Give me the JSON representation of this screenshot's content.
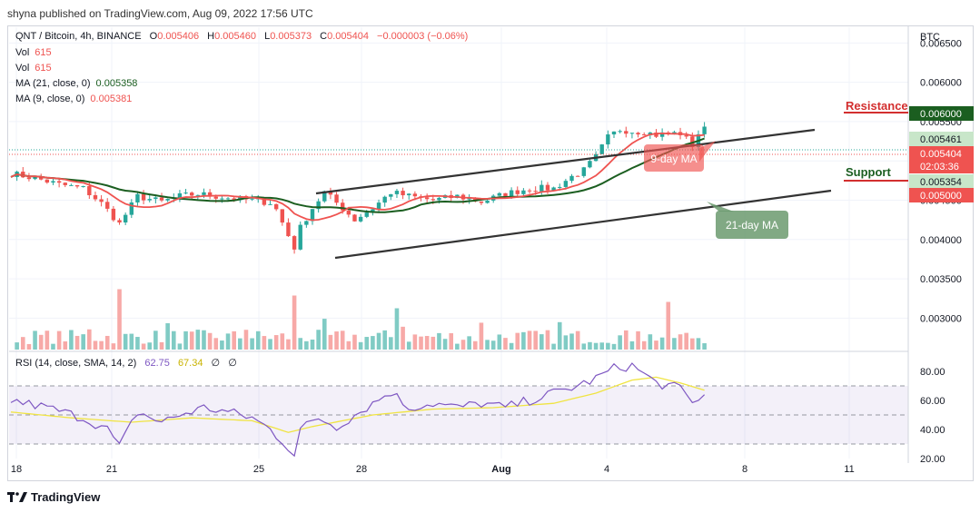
{
  "header": {
    "publisher": "shyna published on TradingView.com, Aug 09, 2022 17:56 UTC",
    "currency": "BTC"
  },
  "legend": {
    "symbol": "QNT / Bitcoin, 4h, BINANCE",
    "o_label": "O",
    "o": "0.005406",
    "h_label": "H",
    "h": "0.005460",
    "l_label": "L",
    "l": "0.005373",
    "c_label": "C",
    "c": "0.005404",
    "change": "−0.000003 (−0.06%)",
    "vol1_label": "Vol",
    "vol1": "615",
    "vol2_label": "Vol",
    "vol2": "615",
    "ma21_label": "MA (21, close, 0)",
    "ma21": "0.005358",
    "ma9_label": "MA (9, close, 0)",
    "ma9": "0.005381",
    "rsi_label": "RSI (14, close, SMA, 14, 2)",
    "rsi": "62.75",
    "rsi_sma": "67.34",
    "rsi_extra1": "∅",
    "rsi_extra2": "∅"
  },
  "annotations": {
    "resistance": "Resistance",
    "support": "Support",
    "ma9_tag": "9-day MA",
    "ma21_tag": "21-day MA"
  },
  "price_badges": {
    "resistance": "0.006000",
    "high": "0.005461",
    "last": "0.005404",
    "countdown": "02:03:36",
    "ma21": "0.005354",
    "support": "0.005000"
  },
  "colors": {
    "up": "#26a69a",
    "down": "#ef5350",
    "ma9": "#ef5350",
    "ma21": "#1b5e20",
    "rsi": "#7e57c2",
    "rsi_sma": "#f0e442",
    "channel": "#333333",
    "support": "#d32f2f",
    "resistance_badge": "#1b5e20"
  },
  "footer": {
    "brand": "TradingView"
  },
  "chart_data": [
    {
      "type": "candlestick",
      "title": "QNT / Bitcoin, 4h, BINANCE",
      "y_axis_ticks": [
        "0.006500",
        "0.006000",
        "0.005500",
        "0.005000",
        "0.004500",
        "0.004000",
        "0.003500",
        "0.003000"
      ],
      "y_axis_values": [
        0.0065,
        0.006,
        0.0055,
        0.005,
        0.0045,
        0.004,
        0.0035,
        0.003
      ],
      "x_axis_ticks": [
        "18",
        "21",
        "25",
        "28",
        "Aug",
        "4",
        "8",
        "11"
      ],
      "ylim": [
        0.0026,
        0.0067
      ],
      "close_path": [
        [
          0,
          0.00484
        ],
        [
          4,
          0.00478
        ],
        [
          8,
          0.0047
        ],
        [
          12,
          0.00465
        ],
        [
          15,
          0.00446
        ],
        [
          18,
          0.0042
        ],
        [
          21,
          0.00455
        ],
        [
          25,
          0.00448
        ],
        [
          28,
          0.00455
        ],
        [
          31,
          0.00458
        ],
        [
          34,
          0.00455
        ],
        [
          37,
          0.00452
        ],
        [
          40,
          0.0045
        ],
        [
          43,
          0.00447
        ],
        [
          44,
          0.00438
        ],
        [
          46,
          0.00405
        ],
        [
          47,
          0.0039
        ],
        [
          48,
          0.00415
        ],
        [
          50,
          0.0044
        ],
        [
          52,
          0.0046
        ],
        [
          55,
          0.0044
        ],
        [
          57,
          0.00425
        ],
        [
          60,
          0.0044
        ],
        [
          63,
          0.0046
        ],
        [
          66,
          0.00455
        ],
        [
          70,
          0.0045
        ],
        [
          74,
          0.00455
        ],
        [
          78,
          0.00448
        ],
        [
          82,
          0.00458
        ],
        [
          86,
          0.00465
        ],
        [
          90,
          0.00465
        ],
        [
          93,
          0.0048
        ],
        [
          95,
          0.00488
        ],
        [
          97,
          0.00505
        ],
        [
          99,
          0.0053
        ],
        [
          101,
          0.0054
        ],
        [
          103,
          0.00538
        ],
        [
          105,
          0.00537
        ],
        [
          107,
          0.00533
        ],
        [
          109,
          0.00535
        ],
        [
          111,
          0.00535
        ],
        [
          113,
          0.0052
        ],
        [
          114,
          0.00535
        ],
        [
          115,
          0.0054
        ]
      ],
      "volume_ylim": [
        0,
        1
      ],
      "volume_spikes": [
        [
          18,
          0.95
        ],
        [
          47,
          0.85
        ],
        [
          64,
          0.65
        ],
        [
          109,
          0.75
        ]
      ]
    },
    {
      "type": "line",
      "title": "RSI (14, close, SMA, 14, 2)",
      "y_axis_ticks": [
        "80.00",
        "60.00",
        "40.00",
        "20.00"
      ],
      "y_axis_values": [
        80,
        60,
        40,
        20
      ],
      "ylim": [
        20,
        90
      ],
      "bands": [
        30,
        50,
        70
      ],
      "series": [
        {
          "name": "RSI",
          "values": [
            [
              0,
              60
            ],
            [
              6,
              55
            ],
            [
              12,
              48
            ],
            [
              16,
              40
            ],
            [
              18,
              28
            ],
            [
              21,
              52
            ],
            [
              25,
              45
            ],
            [
              28,
              50
            ],
            [
              32,
              55
            ],
            [
              36,
              52
            ],
            [
              40,
              48
            ],
            [
              43,
              40
            ],
            [
              46,
              28
            ],
            [
              47,
              23
            ],
            [
              48,
              40
            ],
            [
              51,
              48
            ],
            [
              54,
              42
            ],
            [
              57,
              50
            ],
            [
              60,
              58
            ],
            [
              63,
              66
            ],
            [
              66,
              55
            ],
            [
              70,
              58
            ],
            [
              74,
              55
            ],
            [
              78,
              58
            ],
            [
              82,
              55
            ],
            [
              86,
              60
            ],
            [
              90,
              65
            ],
            [
              94,
              70
            ],
            [
              97,
              75
            ],
            [
              100,
              82
            ],
            [
              103,
              84
            ],
            [
              105,
              78
            ],
            [
              107,
              72
            ],
            [
              109,
              70
            ],
            [
              111,
              68
            ],
            [
              113,
              58
            ],
            [
              114,
              62
            ],
            [
              115,
              63
            ]
          ]
        },
        {
          "name": "RSI-based MA",
          "values": [
            [
              0,
              52
            ],
            [
              10,
              48
            ],
            [
              20,
              45
            ],
            [
              30,
              48
            ],
            [
              40,
              46
            ],
            [
              46,
              38
            ],
            [
              50,
              42
            ],
            [
              60,
              50
            ],
            [
              70,
              54
            ],
            [
              80,
              55
            ],
            [
              90,
              58
            ],
            [
              97,
              65
            ],
            [
              103,
              74
            ],
            [
              107,
              76
            ],
            [
              111,
              72
            ],
            [
              115,
              67
            ]
          ]
        }
      ]
    }
  ]
}
